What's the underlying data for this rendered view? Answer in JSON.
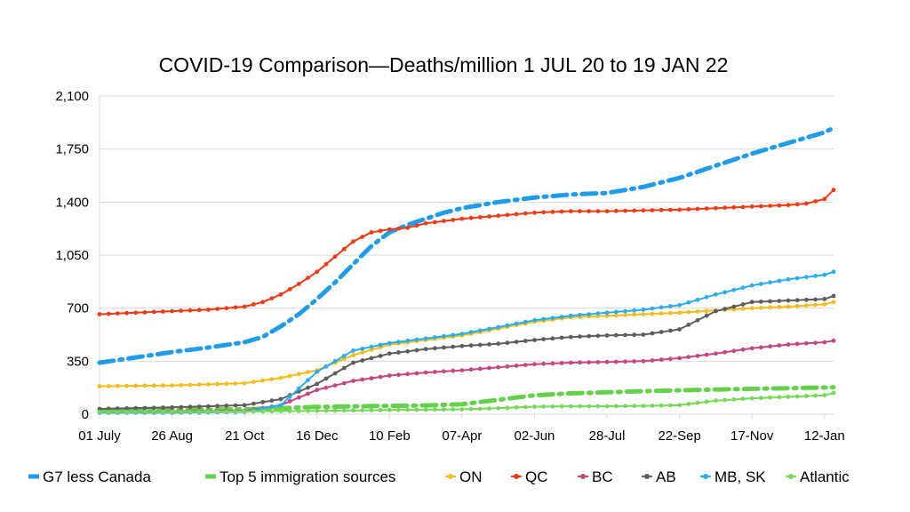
{
  "chart_data": {
    "type": "line",
    "title": "COVID-19 Comparison—Deaths/million 1 JUL 20 to 19 JAN 22",
    "xlabel": "",
    "ylabel": "",
    "ylim": [
      0,
      2100
    ],
    "yticks": [
      "0",
      "350",
      "700",
      "1,050",
      "1,400",
      "1,750",
      "2,100"
    ],
    "ytick_values": [
      0,
      350,
      700,
      1050,
      1400,
      1750,
      2100
    ],
    "xticks": [
      "01 July",
      "26 Aug",
      "21 Oct",
      "16 Dec",
      "10 Feb",
      "07-Apr",
      "02-Jun",
      "28-Jul",
      "22-Sep",
      "17-Nov",
      "12-Jan"
    ],
    "xtick_dates": [
      "2020-07-01",
      "2020-08-26",
      "2020-10-21",
      "2020-12-16",
      "2021-02-10",
      "2021-04-07",
      "2021-06-02",
      "2021-07-28",
      "2021-09-22",
      "2021-11-17",
      "2022-01-12"
    ],
    "xlim": [
      "2020-07-01",
      "2022-01-19"
    ],
    "grid": "horizontal",
    "legend_position": "bottom",
    "series": [
      {
        "name": "G7 less Canada",
        "color": "#1F9CEA",
        "style": "dashdot",
        "x": [
          "2020-07-01",
          "2020-07-29",
          "2020-08-26",
          "2020-09-23",
          "2020-10-21",
          "2020-11-04",
          "2020-11-18",
          "2020-12-02",
          "2020-12-16",
          "2020-12-30",
          "2021-01-13",
          "2021-01-27",
          "2021-02-10",
          "2021-02-24",
          "2021-03-10",
          "2021-03-24",
          "2021-04-07",
          "2021-05-05",
          "2021-06-02",
          "2021-06-30",
          "2021-07-28",
          "2021-08-25",
          "2021-09-22",
          "2021-10-20",
          "2021-11-17",
          "2021-12-15",
          "2022-01-12",
          "2022-01-19"
        ],
        "y": [
          340,
          375,
          410,
          440,
          475,
          510,
          580,
          660,
          760,
          870,
          990,
          1110,
          1200,
          1250,
          1290,
          1330,
          1360,
          1400,
          1430,
          1450,
          1460,
          1500,
          1560,
          1640,
          1720,
          1790,
          1860,
          1890
        ]
      },
      {
        "name": "Top 5 immigration sources",
        "color": "#63D14A",
        "style": "dashdot",
        "x": [
          "2020-07-01",
          "2020-08-26",
          "2020-10-21",
          "2020-11-18",
          "2020-12-16",
          "2021-01-13",
          "2021-02-10",
          "2021-03-10",
          "2021-04-07",
          "2021-05-05",
          "2021-06-02",
          "2021-06-30",
          "2021-07-28",
          "2021-08-25",
          "2021-09-22",
          "2021-10-20",
          "2021-11-17",
          "2021-12-15",
          "2022-01-12",
          "2022-01-19"
        ],
        "y": [
          25,
          28,
          32,
          40,
          48,
          52,
          55,
          58,
          66,
          95,
          125,
          138,
          145,
          152,
          158,
          163,
          168,
          172,
          176,
          178
        ]
      },
      {
        "name": "ON",
        "color": "#F5BC1C",
        "style": "solid",
        "x": [
          "2020-07-01",
          "2020-08-26",
          "2020-10-21",
          "2020-11-18",
          "2020-12-16",
          "2021-01-13",
          "2021-02-10",
          "2021-03-10",
          "2021-04-07",
          "2021-05-05",
          "2021-06-02",
          "2021-06-30",
          "2021-07-28",
          "2021-08-25",
          "2021-09-22",
          "2021-10-20",
          "2021-11-17",
          "2021-12-15",
          "2022-01-12",
          "2022-01-19"
        ],
        "y": [
          185,
          190,
          205,
          240,
          290,
          390,
          460,
          490,
          520,
          565,
          610,
          640,
          650,
          660,
          670,
          685,
          700,
          710,
          725,
          740
        ]
      },
      {
        "name": "QC",
        "color": "#F23A14",
        "style": "solid",
        "x": [
          "2020-07-01",
          "2020-07-29",
          "2020-08-26",
          "2020-09-23",
          "2020-10-21",
          "2020-11-04",
          "2020-11-18",
          "2020-12-02",
          "2020-12-16",
          "2020-12-30",
          "2021-01-13",
          "2021-01-27",
          "2021-02-10",
          "2021-02-24",
          "2021-03-10",
          "2021-04-07",
          "2021-05-05",
          "2021-06-02",
          "2021-06-30",
          "2021-07-28",
          "2021-08-25",
          "2021-09-22",
          "2021-10-20",
          "2021-11-17",
          "2021-12-15",
          "2021-12-29",
          "2022-01-12",
          "2022-01-19"
        ],
        "y": [
          660,
          670,
          680,
          690,
          710,
          740,
          790,
          860,
          940,
          1040,
          1140,
          1200,
          1220,
          1230,
          1260,
          1290,
          1310,
          1330,
          1340,
          1340,
          1345,
          1350,
          1360,
          1370,
          1380,
          1390,
          1420,
          1480
        ]
      },
      {
        "name": "BC",
        "color": "#C8467F",
        "style": "solid",
        "x": [
          "2020-07-01",
          "2020-08-26",
          "2020-10-21",
          "2020-11-18",
          "2020-12-16",
          "2021-01-13",
          "2021-02-10",
          "2021-03-10",
          "2021-04-07",
          "2021-05-05",
          "2021-06-02",
          "2021-06-30",
          "2021-07-28",
          "2021-08-25",
          "2021-09-22",
          "2021-10-20",
          "2021-11-17",
          "2021-12-15",
          "2022-01-12",
          "2022-01-19"
        ],
        "y": [
          15,
          18,
          22,
          60,
          160,
          220,
          255,
          275,
          290,
          310,
          330,
          340,
          345,
          350,
          370,
          400,
          435,
          460,
          475,
          485
        ]
      },
      {
        "name": "AB",
        "color": "#5D5D5D",
        "style": "solid",
        "x": [
          "2020-07-01",
          "2020-08-26",
          "2020-10-21",
          "2020-11-18",
          "2020-12-16",
          "2021-01-13",
          "2021-02-10",
          "2021-03-10",
          "2021-04-07",
          "2021-05-05",
          "2021-06-02",
          "2021-06-30",
          "2021-07-28",
          "2021-08-25",
          "2021-09-22",
          "2021-10-20",
          "2021-11-17",
          "2021-12-15",
          "2022-01-12",
          "2022-01-19"
        ],
        "y": [
          35,
          45,
          60,
          100,
          200,
          340,
          400,
          430,
          450,
          465,
          490,
          510,
          520,
          525,
          560,
          680,
          740,
          750,
          760,
          780
        ]
      },
      {
        "name": "MB, SK",
        "color": "#2AAEF2",
        "style": "solid",
        "x": [
          "2020-07-01",
          "2020-08-26",
          "2020-10-21",
          "2020-11-18",
          "2020-12-16",
          "2021-01-13",
          "2021-02-10",
          "2021-03-10",
          "2021-04-07",
          "2021-05-05",
          "2021-06-02",
          "2021-06-30",
          "2021-07-28",
          "2021-08-25",
          "2021-09-22",
          "2021-10-20",
          "2021-11-17",
          "2021-12-15",
          "2022-01-12",
          "2022-01-19"
        ],
        "y": [
          10,
          10,
          15,
          60,
          280,
          420,
          470,
          500,
          530,
          575,
          620,
          650,
          670,
          690,
          720,
          790,
          850,
          890,
          920,
          940
        ]
      },
      {
        "name": "Atlantic",
        "color": "#77D957",
        "style": "solid",
        "x": [
          "2020-07-01",
          "2020-08-26",
          "2020-10-21",
          "2020-11-18",
          "2020-12-16",
          "2021-01-13",
          "2021-02-10",
          "2021-03-10",
          "2021-04-07",
          "2021-05-05",
          "2021-06-02",
          "2021-06-30",
          "2021-07-28",
          "2021-08-25",
          "2021-09-22",
          "2021-10-20",
          "2021-11-17",
          "2021-12-15",
          "2022-01-12",
          "2022-01-19"
        ],
        "y": [
          15,
          15,
          18,
          20,
          22,
          25,
          28,
          30,
          32,
          40,
          50,
          52,
          53,
          55,
          60,
          90,
          105,
          115,
          125,
          140
        ]
      }
    ]
  }
}
